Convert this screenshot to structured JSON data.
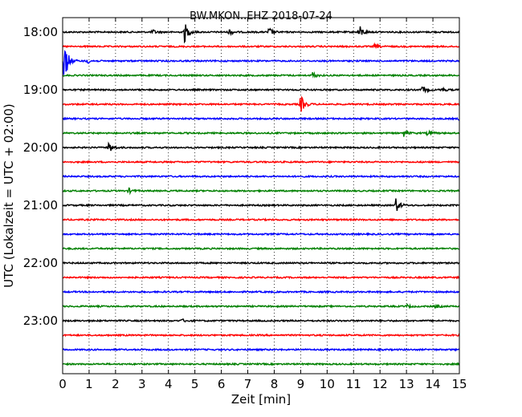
{
  "chart_data": {
    "type": "line",
    "title": "BW.MKON..EHZ 2018-07-24",
    "xlabel": "Zeit  [min]",
    "ylabel": "UTC (Lokalzeit = UTC + 02:00)",
    "xlim": [
      0,
      15
    ],
    "x_ticks": [
      "0",
      "1",
      "2",
      "3",
      "4",
      "5",
      "6",
      "7",
      "8",
      "9",
      "10",
      "11",
      "12",
      "13",
      "14",
      "15"
    ],
    "y_tick_labels": [
      "18:00",
      "19:00",
      "20:00",
      "21:00",
      "22:00",
      "23:00"
    ],
    "grid": "vertical dotted at each minute",
    "series_colors": [
      "#000000",
      "#ff0000",
      "#0000ff",
      "#008000"
    ],
    "traces": [
      {
        "start": "18:00",
        "color": "#000000",
        "events": [
          {
            "t": 4.6,
            "amp": 14
          },
          {
            "t": 7.8,
            "amp": 6
          },
          {
            "t": 11.2,
            "amp": 10
          },
          {
            "t": 6.3,
            "amp": 4
          },
          {
            "t": 3.4,
            "amp": 3
          }
        ]
      },
      {
        "start": "18:15",
        "color": "#ff0000",
        "events": [
          {
            "t": 11.8,
            "amp": 3
          }
        ]
      },
      {
        "start": "18:30",
        "color": "#0000ff",
        "events": [
          {
            "t": 0.05,
            "amp": 30
          },
          {
            "t": 0.9,
            "amp": 4
          }
        ]
      },
      {
        "start": "18:45",
        "color": "#008000",
        "events": [
          {
            "t": 9.45,
            "amp": 4
          }
        ]
      },
      {
        "start": "19:00",
        "color": "#000000",
        "events": [
          {
            "t": 13.6,
            "amp": 5
          },
          {
            "t": 14.3,
            "amp": 3
          }
        ]
      },
      {
        "start": "19:15",
        "color": "#ff0000",
        "events": [
          {
            "t": 9.0,
            "amp": 12
          }
        ]
      },
      {
        "start": "19:30",
        "color": "#0000ff",
        "events": [
          {
            "t": 15.0,
            "amp": 3
          }
        ]
      },
      {
        "start": "19:45",
        "color": "#008000",
        "events": [
          {
            "t": 12.9,
            "amp": 4
          },
          {
            "t": 13.8,
            "amp": 3
          }
        ]
      },
      {
        "start": "20:00",
        "color": "#000000",
        "events": [
          {
            "t": 1.75,
            "amp": 7
          }
        ]
      },
      {
        "start": "20:15",
        "color": "#ff0000",
        "events": []
      },
      {
        "start": "20:30",
        "color": "#0000ff",
        "events": []
      },
      {
        "start": "20:45",
        "color": "#008000",
        "events": [
          {
            "t": 2.5,
            "amp": 3
          }
        ]
      },
      {
        "start": "21:00",
        "color": "#000000",
        "events": [
          {
            "t": 12.6,
            "amp": 9
          }
        ]
      },
      {
        "start": "21:15",
        "color": "#ff0000",
        "events": []
      },
      {
        "start": "21:30",
        "color": "#0000ff",
        "events": []
      },
      {
        "start": "21:45",
        "color": "#008000",
        "events": []
      },
      {
        "start": "22:00",
        "color": "#000000",
        "events": []
      },
      {
        "start": "22:15",
        "color": "#ff0000",
        "events": []
      },
      {
        "start": "22:30",
        "color": "#0000ff",
        "events": []
      },
      {
        "start": "22:45",
        "color": "#008000",
        "events": [
          {
            "t": 13.0,
            "amp": 2
          },
          {
            "t": 14.1,
            "amp": 2
          }
        ]
      },
      {
        "start": "23:00",
        "color": "#000000",
        "events": [
          {
            "t": 4.5,
            "amp": 2
          }
        ]
      },
      {
        "start": "23:15",
        "color": "#ff0000",
        "events": []
      },
      {
        "start": "23:30",
        "color": "#0000ff",
        "events": []
      },
      {
        "start": "23:45",
        "color": "#008000",
        "events": []
      }
    ]
  }
}
